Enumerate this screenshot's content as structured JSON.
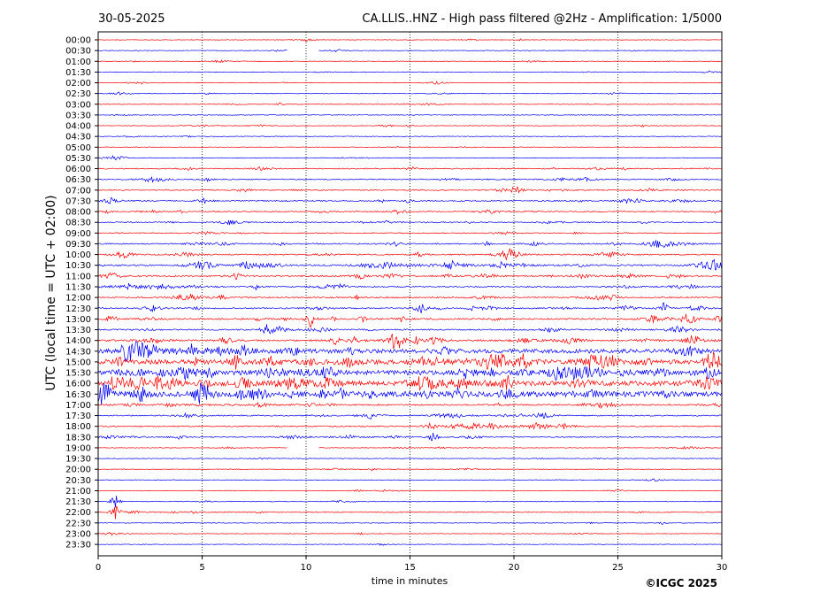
{
  "header": {
    "date": "30-05-2025",
    "title": "CA.LLIS..HNZ - High pass filtered @2Hz - Amplification: 1/5000"
  },
  "footer": {
    "copyright": "©ICGC 2025"
  },
  "colors": {
    "red_trace": "#ff0000",
    "blue_trace": "#0000ff",
    "grid": "#000000",
    "text": "#000000"
  },
  "chart_data": {
    "type": "helicorder",
    "title": "CA.LLIS..HNZ - High pass filtered @2Hz - Amplification: 1/5000",
    "xlabel": "time in minutes",
    "ylabel": "UTC (local time = UTC + 02:00)",
    "xlim": [
      0,
      30
    ],
    "x_ticks": [
      0,
      5,
      10,
      15,
      20,
      25,
      30
    ],
    "vertical_grid": "dotted at 5, 10, 15, 20, 25 minutes",
    "row_minutes": 30,
    "row_colors_alternate": [
      "red",
      "blue"
    ],
    "rows": [
      "00:00",
      "00:30",
      "01:00",
      "01:30",
      "02:00",
      "02:30",
      "03:00",
      "03:30",
      "04:00",
      "04:30",
      "05:00",
      "05:30",
      "06:00",
      "06:30",
      "07:00",
      "07:30",
      "08:00",
      "08:30",
      "09:00",
      "09:30",
      "10:00",
      "10:30",
      "11:00",
      "11:30",
      "12:00",
      "12:30",
      "13:00",
      "13:30",
      "14:00",
      "14:30",
      "15:00",
      "15:30",
      "16:00",
      "16:30",
      "17:00",
      "17:30",
      "18:00",
      "18:30",
      "19:00",
      "19:30",
      "20:00",
      "20:30",
      "21:00",
      "21:30",
      "22:00",
      "22:30",
      "23:00",
      "23:30"
    ],
    "row_activity": [
      0.1,
      0.1,
      0.1,
      0.1,
      0.1,
      0.1,
      0.15,
      0.15,
      0.15,
      0.15,
      0.15,
      0.1,
      0.45,
      0.5,
      0.45,
      0.55,
      0.5,
      0.5,
      0.35,
      0.55,
      0.6,
      0.9,
      0.75,
      0.7,
      0.6,
      0.7,
      0.8,
      0.7,
      1.0,
      1.1,
      1.3,
      1.3,
      1.3,
      1.4,
      0.75,
      0.6,
      0.6,
      0.45,
      0.15,
      0.15,
      0.1,
      0.1,
      0.1,
      0.2,
      0.3,
      0.1,
      0.1,
      0.1
    ],
    "data_gaps": [
      {
        "row": "00:30",
        "from_min": 9.1,
        "to_min": 10.6
      },
      {
        "row": "19:00",
        "from_min": 9.1,
        "to_min": 10.6
      }
    ],
    "notable_events": [
      {
        "row": "21:30",
        "minute": 0.8
      },
      {
        "row": "22:00",
        "minute": 0.8
      },
      {
        "row": "12:30",
        "minute": 27.2
      },
      {
        "row": "13:00",
        "minute": 10.2
      },
      {
        "row": "18:30",
        "minute": 16.1
      }
    ]
  }
}
